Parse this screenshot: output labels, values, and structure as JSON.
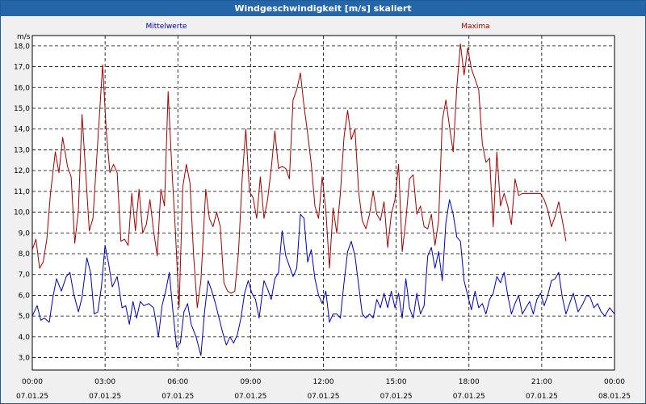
{
  "title": "Windgeschwindigkeit [m/s] skaliert",
  "colors": {
    "titlebar": "#2566a9",
    "mean": "#0000b4",
    "max": "#a00000",
    "grid": "#000000"
  },
  "chart_data": {
    "type": "line",
    "title": "Windgeschwindigkeit [m/s] skaliert",
    "ylabel": "m/s",
    "xlabel": "",
    "ylim": [
      2.4,
      18.5
    ],
    "xlim_hours": [
      0,
      24
    ],
    "grid": true,
    "legend_placement": "top",
    "y_ticks": [
      "18,0",
      "17,0",
      "16,0",
      "15,0",
      "14,0",
      "13,0",
      "12,0",
      "11,0",
      "10,0",
      "9,0",
      "8,0",
      "7,0",
      "6,0",
      "5,0",
      "4,0",
      "3,0"
    ],
    "x_ticks": [
      {
        "time": "00:00",
        "date": "07.01.25"
      },
      {
        "time": "03:00",
        "date": "07.01.25"
      },
      {
        "time": "06:00",
        "date": "07.01.25"
      },
      {
        "time": "09:00",
        "date": "07.01.25"
      },
      {
        "time": "12:00",
        "date": "07.01.25"
      },
      {
        "time": "15:00",
        "date": "07.01.25"
      },
      {
        "time": "18:00",
        "date": "07.01.25"
      },
      {
        "time": "21:00",
        "date": "07.01.25"
      },
      {
        "time": "00:00",
        "date": "08.01.25"
      }
    ],
    "series": [
      {
        "name": "Mittelwerte",
        "color": "#0000b4",
        "points": [
          [
            0,
            5.0
          ],
          [
            0.2,
            5.5
          ],
          [
            0.35,
            4.8
          ],
          [
            0.5,
            4.9
          ],
          [
            0.7,
            4.7
          ],
          [
            0.85,
            5.9
          ],
          [
            1.0,
            6.8
          ],
          [
            1.2,
            6.2
          ],
          [
            1.4,
            6.9
          ],
          [
            1.55,
            7.1
          ],
          [
            1.7,
            6.1
          ],
          [
            1.9,
            5.2
          ],
          [
            2.05,
            5.9
          ],
          [
            2.25,
            7.8
          ],
          [
            2.4,
            7.1
          ],
          [
            2.55,
            5.1
          ],
          [
            2.7,
            5.2
          ],
          [
            2.85,
            6.4
          ],
          [
            3.0,
            8.4
          ],
          [
            3.15,
            7.5
          ],
          [
            3.3,
            6.4
          ],
          [
            3.5,
            6.9
          ],
          [
            3.7,
            5.4
          ],
          [
            3.85,
            5.5
          ],
          [
            4.0,
            4.6
          ],
          [
            4.15,
            5.7
          ],
          [
            4.3,
            4.9
          ],
          [
            4.45,
            5.7
          ],
          [
            4.6,
            5.5
          ],
          [
            4.8,
            5.6
          ],
          [
            5.0,
            5.4
          ],
          [
            5.2,
            4.0
          ],
          [
            5.35,
            5.5
          ],
          [
            5.5,
            6.2
          ],
          [
            5.65,
            7.1
          ],
          [
            5.8,
            5.2
          ],
          [
            5.95,
            3.5
          ],
          [
            6.1,
            3.7
          ],
          [
            6.25,
            5.2
          ],
          [
            6.4,
            5.6
          ],
          [
            6.55,
            4.6
          ],
          [
            6.75,
            4.0
          ],
          [
            6.95,
            3.1
          ],
          [
            7.1,
            5.2
          ],
          [
            7.25,
            6.7
          ],
          [
            7.4,
            6.2
          ],
          [
            7.55,
            5.6
          ],
          [
            7.7,
            4.9
          ],
          [
            7.85,
            4.2
          ],
          [
            8.0,
            3.6
          ],
          [
            8.15,
            4.0
          ],
          [
            8.3,
            3.7
          ],
          [
            8.45,
            4.1
          ],
          [
            8.6,
            4.9
          ],
          [
            8.75,
            6.1
          ],
          [
            8.9,
            6.7
          ],
          [
            9.05,
            6.1
          ],
          [
            9.2,
            5.8
          ],
          [
            9.35,
            4.9
          ],
          [
            9.55,
            6.7
          ],
          [
            9.7,
            6.3
          ],
          [
            9.85,
            5.8
          ],
          [
            10.0,
            6.8
          ],
          [
            10.15,
            7.1
          ],
          [
            10.3,
            9.1
          ],
          [
            10.45,
            7.9
          ],
          [
            10.6,
            7.4
          ],
          [
            10.75,
            6.9
          ],
          [
            10.9,
            7.3
          ],
          [
            11.05,
            9.9
          ],
          [
            11.2,
            9.7
          ],
          [
            11.35,
            7.6
          ],
          [
            11.5,
            8.2
          ],
          [
            11.65,
            6.8
          ],
          [
            11.8,
            6.0
          ],
          [
            11.95,
            5.6
          ],
          [
            12.1,
            6.2
          ],
          [
            12.25,
            4.7
          ],
          [
            12.4,
            5.1
          ],
          [
            12.55,
            5.1
          ],
          [
            12.7,
            4.9
          ],
          [
            12.85,
            6.6
          ],
          [
            13.0,
            8.1
          ],
          [
            13.15,
            8.6
          ],
          [
            13.3,
            7.9
          ],
          [
            13.45,
            6.5
          ],
          [
            13.6,
            5.1
          ],
          [
            13.75,
            4.9
          ],
          [
            13.9,
            5.1
          ],
          [
            14.05,
            4.9
          ],
          [
            14.2,
            5.8
          ],
          [
            14.35,
            5.4
          ],
          [
            14.5,
            6.1
          ],
          [
            14.65,
            5.4
          ],
          [
            14.8,
            6.2
          ],
          [
            14.95,
            5.4
          ],
          [
            15.1,
            6.1
          ],
          [
            15.25,
            4.9
          ],
          [
            15.4,
            6.8
          ],
          [
            15.55,
            5.4
          ],
          [
            15.7,
            4.9
          ],
          [
            15.85,
            6.1
          ],
          [
            16.0,
            5.1
          ],
          [
            16.15,
            5.5
          ],
          [
            16.3,
            7.9
          ],
          [
            16.45,
            8.3
          ],
          [
            16.6,
            7.3
          ],
          [
            16.75,
            8.1
          ],
          [
            16.9,
            6.7
          ],
          [
            17.05,
            9.5
          ],
          [
            17.2,
            10.6
          ],
          [
            17.35,
            9.9
          ],
          [
            17.5,
            8.8
          ],
          [
            17.65,
            8.6
          ],
          [
            17.8,
            6.7
          ],
          [
            17.95,
            6.0
          ],
          [
            18.1,
            5.3
          ],
          [
            18.25,
            6.2
          ],
          [
            18.4,
            5.4
          ],
          [
            18.55,
            5.6
          ],
          [
            18.7,
            5.1
          ],
          [
            18.85,
            5.8
          ],
          [
            19.0,
            6.1
          ],
          [
            19.15,
            6.9
          ],
          [
            19.3,
            6.6
          ],
          [
            19.45,
            7.1
          ],
          [
            19.6,
            6.0
          ],
          [
            19.75,
            5.1
          ],
          [
            19.9,
            5.6
          ],
          [
            20.05,
            6.0
          ],
          [
            20.2,
            5.1
          ],
          [
            20.35,
            5.4
          ],
          [
            20.5,
            5.7
          ],
          [
            20.65,
            5.1
          ],
          [
            20.8,
            5.8
          ],
          [
            20.95,
            6.1
          ],
          [
            21.1,
            5.5
          ],
          [
            21.25,
            6.0
          ],
          [
            21.4,
            6.7
          ],
          [
            21.55,
            6.8
          ],
          [
            21.7,
            7.1
          ],
          [
            21.85,
            5.9
          ],
          [
            22.0,
            5.1
          ],
          [
            22.15,
            5.6
          ],
          [
            22.3,
            6.1
          ],
          [
            22.5,
            5.2
          ],
          [
            22.7,
            5.6
          ],
          [
            22.85,
            6.0
          ],
          [
            23.0,
            5.9
          ],
          [
            23.15,
            5.4
          ],
          [
            23.3,
            5.6
          ],
          [
            23.45,
            5.2
          ],
          [
            23.6,
            5.0
          ],
          [
            23.8,
            5.4
          ],
          [
            24.0,
            5.1
          ]
        ]
      },
      {
        "name": "Maxima",
        "color": "#a00000",
        "points": [
          [
            0,
            8.2
          ],
          [
            0.15,
            8.7
          ],
          [
            0.3,
            7.3
          ],
          [
            0.45,
            7.6
          ],
          [
            0.6,
            8.7
          ],
          [
            0.75,
            10.9
          ],
          [
            0.95,
            12.9
          ],
          [
            1.1,
            11.9
          ],
          [
            1.25,
            13.6
          ],
          [
            1.45,
            12.2
          ],
          [
            1.6,
            11.7
          ],
          [
            1.75,
            8.5
          ],
          [
            1.9,
            10.1
          ],
          [
            2.05,
            14.7
          ],
          [
            2.2,
            11.9
          ],
          [
            2.35,
            9.1
          ],
          [
            2.5,
            9.7
          ],
          [
            2.7,
            13.4
          ],
          [
            2.9,
            17.1
          ],
          [
            3.05,
            13.9
          ],
          [
            3.2,
            11.9
          ],
          [
            3.35,
            12.3
          ],
          [
            3.5,
            11.9
          ],
          [
            3.65,
            8.6
          ],
          [
            3.8,
            8.7
          ],
          [
            3.95,
            8.4
          ],
          [
            4.1,
            10.9
          ],
          [
            4.25,
            9.1
          ],
          [
            4.4,
            11.1
          ],
          [
            4.55,
            9.0
          ],
          [
            4.7,
            9.4
          ],
          [
            4.85,
            10.6
          ],
          [
            5.0,
            9.1
          ],
          [
            5.15,
            7.9
          ],
          [
            5.3,
            11.1
          ],
          [
            5.45,
            10.3
          ],
          [
            5.6,
            15.8
          ],
          [
            5.75,
            12.2
          ],
          [
            5.9,
            9.1
          ],
          [
            6.05,
            5.4
          ],
          [
            6.2,
            11.2
          ],
          [
            6.35,
            12.3
          ],
          [
            6.5,
            11.4
          ],
          [
            6.65,
            7.9
          ],
          [
            6.8,
            5.4
          ],
          [
            6.95,
            6.7
          ],
          [
            7.15,
            11.1
          ],
          [
            7.3,
            9.7
          ],
          [
            7.45,
            9.3
          ],
          [
            7.6,
            10.0
          ],
          [
            7.75,
            9.3
          ],
          [
            7.9,
            6.6
          ],
          [
            8.05,
            6.2
          ],
          [
            8.2,
            6.1
          ],
          [
            8.35,
            6.2
          ],
          [
            8.5,
            8.1
          ],
          [
            8.65,
            11.6
          ],
          [
            8.8,
            14.0
          ],
          [
            8.95,
            11.0
          ],
          [
            9.1,
            10.7
          ],
          [
            9.25,
            9.7
          ],
          [
            9.4,
            11.7
          ],
          [
            9.55,
            9.7
          ],
          [
            9.7,
            10.6
          ],
          [
            9.85,
            12.1
          ],
          [
            10.0,
            13.9
          ],
          [
            10.15,
            12.1
          ],
          [
            10.3,
            12.2
          ],
          [
            10.45,
            12.1
          ],
          [
            10.6,
            11.6
          ],
          [
            10.75,
            15.4
          ],
          [
            10.9,
            15.9
          ],
          [
            11.05,
            16.7
          ],
          [
            11.2,
            15.1
          ],
          [
            11.35,
            13.8
          ],
          [
            11.5,
            12.3
          ],
          [
            11.65,
            10.3
          ],
          [
            11.8,
            9.7
          ],
          [
            11.95,
            11.7
          ],
          [
            12.1,
            10.1
          ],
          [
            12.25,
            7.3
          ],
          [
            12.4,
            10.2
          ],
          [
            12.55,
            9.0
          ],
          [
            12.7,
            10.9
          ],
          [
            12.85,
            13.6
          ],
          [
            13.0,
            14.9
          ],
          [
            13.15,
            13.5
          ],
          [
            13.3,
            14.0
          ],
          [
            13.45,
            11.0
          ],
          [
            13.6,
            9.6
          ],
          [
            13.75,
            9.2
          ],
          [
            13.9,
            9.9
          ],
          [
            14.05,
            11.0
          ],
          [
            14.2,
            9.9
          ],
          [
            14.35,
            9.6
          ],
          [
            14.5,
            10.5
          ],
          [
            14.65,
            8.3
          ],
          [
            14.8,
            9.9
          ],
          [
            14.95,
            10.6
          ],
          [
            15.1,
            12.3
          ],
          [
            15.25,
            8.1
          ],
          [
            15.4,
            9.6
          ],
          [
            15.55,
            11.6
          ],
          [
            15.7,
            11.8
          ],
          [
            15.85,
            9.9
          ],
          [
            16.0,
            10.3
          ],
          [
            16.15,
            9.3
          ],
          [
            16.3,
            9.2
          ],
          [
            16.45,
            9.9
          ],
          [
            16.6,
            8.4
          ],
          [
            16.75,
            9.6
          ],
          [
            16.9,
            14.4
          ],
          [
            17.05,
            15.4
          ],
          [
            17.2,
            14.1
          ],
          [
            17.35,
            12.9
          ],
          [
            17.5,
            16.0
          ],
          [
            17.65,
            18.1
          ],
          [
            17.8,
            16.6
          ],
          [
            17.95,
            17.9
          ],
          [
            18.1,
            16.9
          ],
          [
            18.25,
            16.4
          ],
          [
            18.4,
            15.9
          ],
          [
            18.55,
            13.3
          ],
          [
            18.7,
            12.4
          ],
          [
            18.85,
            12.6
          ],
          [
            19.0,
            9.3
          ],
          [
            19.15,
            12.9
          ],
          [
            19.3,
            10.3
          ],
          [
            19.45,
            10.9
          ],
          [
            19.6,
            10.3
          ],
          [
            19.75,
            9.4
          ],
          [
            19.9,
            11.6
          ],
          [
            20.05,
            10.8
          ],
          [
            20.2,
            10.9
          ],
          [
            20.35,
            10.9
          ],
          [
            20.55,
            10.9
          ],
          [
            20.75,
            10.9
          ],
          [
            20.95,
            10.9
          ],
          [
            21.1,
            10.6
          ],
          [
            21.25,
            10.1
          ],
          [
            21.4,
            9.3
          ],
          [
            21.55,
            9.8
          ],
          [
            21.7,
            10.5
          ],
          [
            21.85,
            9.6
          ],
          [
            22.0,
            8.6
          ]
        ]
      }
    ]
  }
}
